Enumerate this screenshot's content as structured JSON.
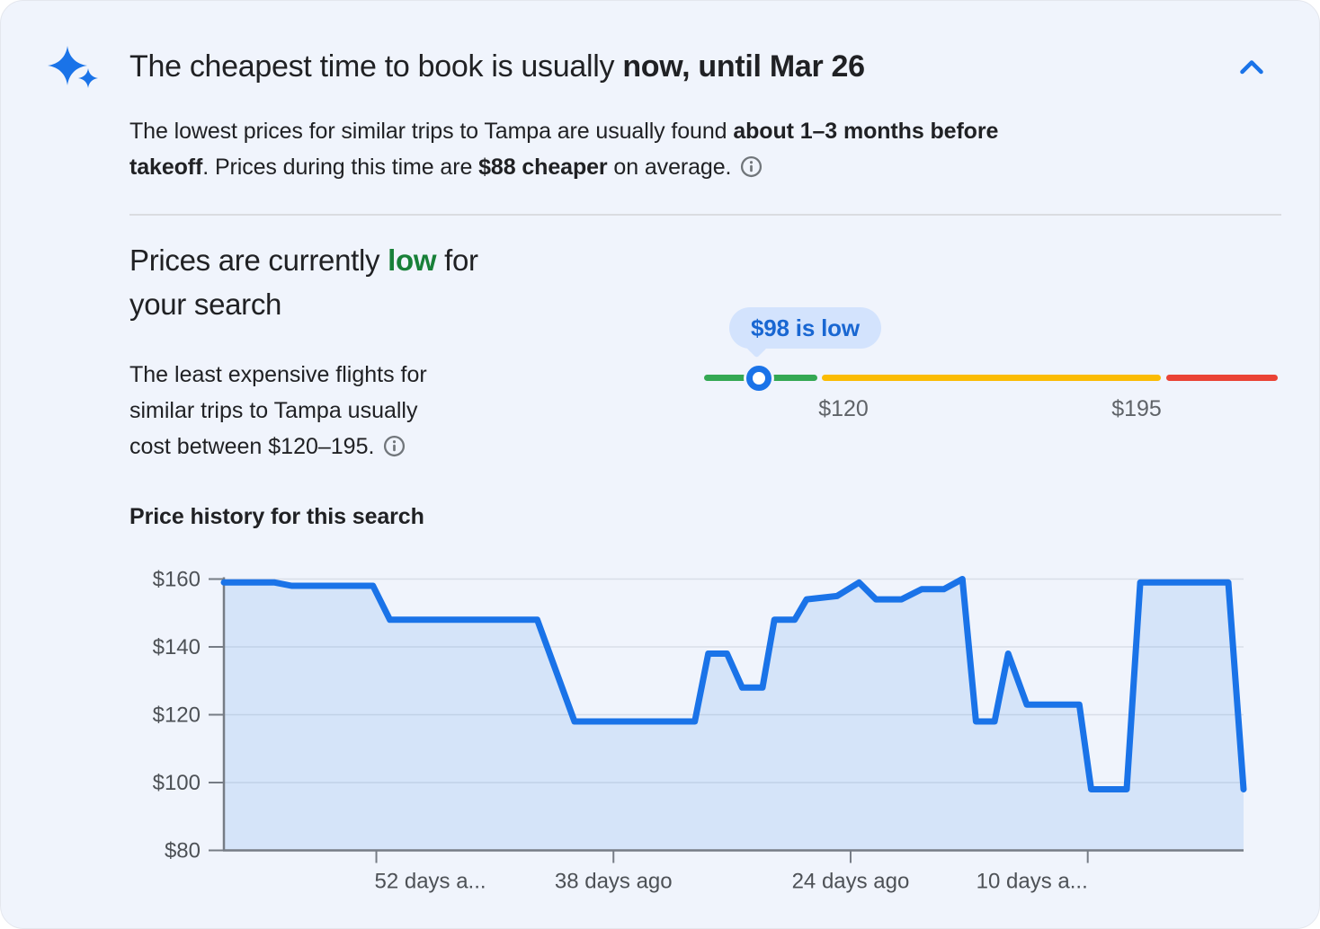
{
  "header": {
    "title_normal": "The cheapest time to book is usually ",
    "title_bold": "now, until Mar 26"
  },
  "summary": {
    "s1": "The lowest prices for similar trips to Tampa are usually found ",
    "s2_bold": "about 1–3 months before",
    "s3_bold": "takeoff",
    "s4": ". Prices during this time are ",
    "s5_bold": "$88 cheaper",
    "s6": " on average."
  },
  "price_level": {
    "heading_pre": "Prices are currently ",
    "level": "low",
    "heading_mid": " for",
    "heading_line2": "your search",
    "level_color": "#188038",
    "body_line1": "The least expensive flights for",
    "body_line2": "similar trips to Tampa usually",
    "body_line3": "cost between $120–195."
  },
  "slider": {
    "tooltip": "$98 is low",
    "low_label": "$120",
    "high_label": "$195",
    "green": "#34a853",
    "yellow": "#fbbc04",
    "red": "#ea4335",
    "marker_color": "#1a73e8",
    "tooltip_bg": "#d3e3fd",
    "tooltip_text_color": "#1967d2"
  },
  "chart_heading": "Price history for this search",
  "chart_data": {
    "type": "area",
    "title": "Price history for this search",
    "x_unit": "days ago",
    "x_domain_days_ago": [
      61,
      0.8
    ],
    "y_domain": [
      80,
      160
    ],
    "ylim": [
      80,
      160
    ],
    "grid": true,
    "line_color": "#1a73e8",
    "fill_color": "rgba(26,115,232,0.12)",
    "axis_color": "#767c85",
    "grid_color": "#d9dee8",
    "y_ticks": [
      {
        "price": 160,
        "label": "$160"
      },
      {
        "price": 140,
        "label": "$140"
      },
      {
        "price": 120,
        "label": "$120"
      },
      {
        "price": 100,
        "label": "$100"
      },
      {
        "price": 80,
        "label": "$80"
      }
    ],
    "x_ticks": [
      {
        "days_ago": 52,
        "label": "52 days a..."
      },
      {
        "days_ago": 38,
        "label": "38 days ago"
      },
      {
        "days_ago": 24,
        "label": "24 days ago"
      },
      {
        "days_ago": 10,
        "label": "10 days a..."
      }
    ],
    "points": [
      {
        "days_ago": 61.0,
        "price": 159
      },
      {
        "days_ago": 58.0,
        "price": 159
      },
      {
        "days_ago": 57.0,
        "price": 158
      },
      {
        "days_ago": 52.2,
        "price": 158
      },
      {
        "days_ago": 51.2,
        "price": 148
      },
      {
        "days_ago": 42.5,
        "price": 148
      },
      {
        "days_ago": 40.3,
        "price": 118
      },
      {
        "days_ago": 33.2,
        "price": 118
      },
      {
        "days_ago": 32.4,
        "price": 138
      },
      {
        "days_ago": 31.3,
        "price": 138
      },
      {
        "days_ago": 30.4,
        "price": 128
      },
      {
        "days_ago": 29.2,
        "price": 128
      },
      {
        "days_ago": 28.5,
        "price": 148
      },
      {
        "days_ago": 27.3,
        "price": 148
      },
      {
        "days_ago": 26.6,
        "price": 154
      },
      {
        "days_ago": 24.8,
        "price": 155
      },
      {
        "days_ago": 23.5,
        "price": 159
      },
      {
        "days_ago": 22.5,
        "price": 154
      },
      {
        "days_ago": 21.0,
        "price": 154
      },
      {
        "days_ago": 19.8,
        "price": 157
      },
      {
        "days_ago": 18.5,
        "price": 157
      },
      {
        "days_ago": 17.4,
        "price": 160
      },
      {
        "days_ago": 16.6,
        "price": 118
      },
      {
        "days_ago": 15.5,
        "price": 118
      },
      {
        "days_ago": 14.7,
        "price": 138
      },
      {
        "days_ago": 13.6,
        "price": 123
      },
      {
        "days_ago": 10.5,
        "price": 123
      },
      {
        "days_ago": 9.8,
        "price": 98
      },
      {
        "days_ago": 7.7,
        "price": 98
      },
      {
        "days_ago": 6.9,
        "price": 159
      },
      {
        "days_ago": 1.7,
        "price": 159
      },
      {
        "days_ago": 0.8,
        "price": 98
      }
    ]
  }
}
